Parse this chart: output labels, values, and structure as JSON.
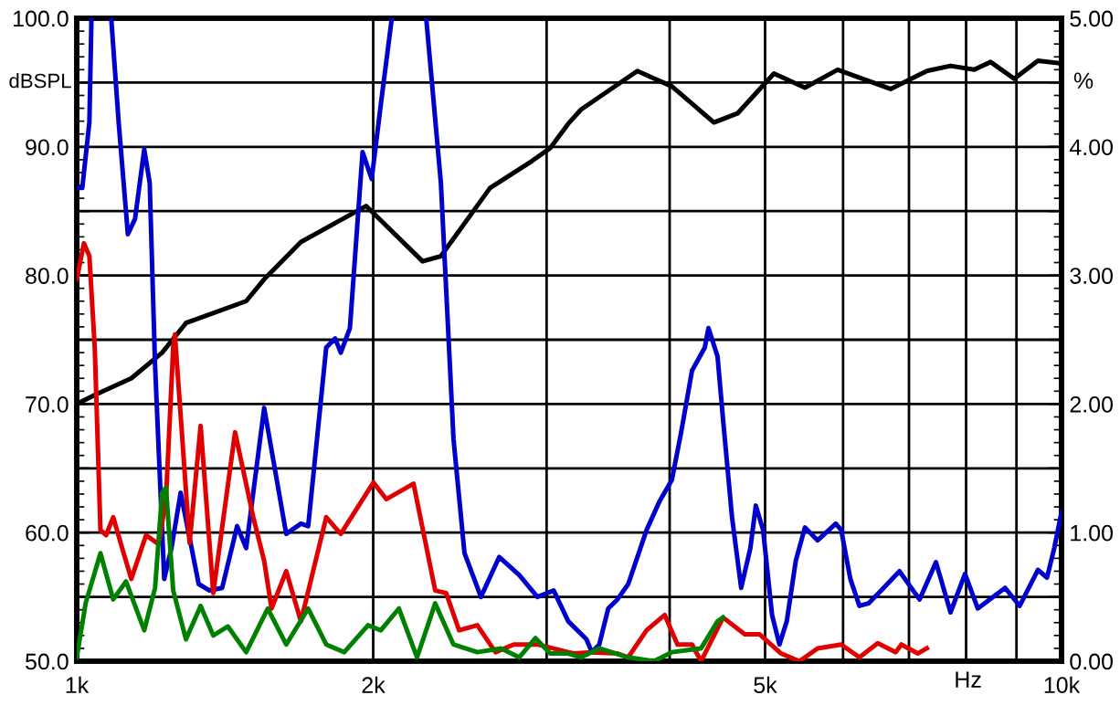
{
  "chart_data": {
    "type": "line",
    "xlabel": "Hz",
    "ylabel": "dBSPL",
    "y2label": "%",
    "log": "x",
    "grid": true,
    "legend": false,
    "marker": "none",
    "line_style": "solid",
    "xlim": [
      1000,
      10000
    ],
    "xticks": [
      {
        "value": 1000,
        "label": "1k"
      },
      {
        "value": 2000,
        "label": "2k"
      },
      {
        "value": 3000,
        "label": null
      },
      {
        "value": 4000,
        "label": null
      },
      {
        "value": 5000,
        "label": "5k"
      },
      {
        "value": 6000,
        "label": null
      },
      {
        "value": 7000,
        "label": null
      },
      {
        "value": 8000,
        "label": null
      },
      {
        "value": 9000,
        "label": null
      },
      {
        "value": 10000,
        "label": "10k"
      }
    ],
    "ylim": [
      50,
      100
    ],
    "yticks": [
      {
        "value": 50,
        "label": "50.0"
      },
      {
        "value": 55,
        "label": null
      },
      {
        "value": 60,
        "label": "60.0"
      },
      {
        "value": 65,
        "label": null
      },
      {
        "value": 70,
        "label": "70.0"
      },
      {
        "value": 75,
        "label": null
      },
      {
        "value": 80,
        "label": "80.0"
      },
      {
        "value": 85,
        "label": null
      },
      {
        "value": 90,
        "label": "90.0"
      },
      {
        "value": 95,
        "label": null
      },
      {
        "value": 100,
        "label": "100.0"
      }
    ],
    "y2lim": [
      0,
      5
    ],
    "y2ticks": [
      {
        "value": 0,
        "label": "0.00"
      },
      {
        "value": 0.5,
        "label": null
      },
      {
        "value": 1,
        "label": "1.00"
      },
      {
        "value": 1.5,
        "label": null
      },
      {
        "value": 2,
        "label": "2.00"
      },
      {
        "value": 2.5,
        "label": null
      },
      {
        "value": 3,
        "label": "3.00"
      },
      {
        "value": 3.5,
        "label": null
      },
      {
        "value": 4,
        "label": "4.00"
      },
      {
        "value": 4.5,
        "label": null
      },
      {
        "value": 5,
        "label": "5.00"
      }
    ],
    "series": [
      {
        "color": "#000000",
        "axis": "y",
        "x": [
          1000,
          1043,
          1136,
          1221,
          1291,
          1486,
          1550,
          1689,
          1967,
          2245,
          2343,
          2628,
          2899,
          3025,
          3156,
          3251,
          3709,
          4021,
          4436,
          4688,
          5105,
          5488,
          5924,
          6705,
          7297,
          7714,
          8153,
          8472,
          8953,
          9462,
          9958
        ],
        "values": [
          70.0,
          70.7,
          72.0,
          74.0,
          76.3,
          78.0,
          79.7,
          82.6,
          85.4,
          81.1,
          81.5,
          86.8,
          88.9,
          89.9,
          91.8,
          92.9,
          95.9,
          94.7,
          91.9,
          92.6,
          95.7,
          94.6,
          96.0,
          94.5,
          95.9,
          96.3,
          96.0,
          96.6,
          95.3,
          96.7,
          96.5
        ]
      },
      {
        "color": "#0000cc",
        "axis": "y2",
        "x": [
          1000,
          1013,
          1030,
          1035,
          1060,
          1084,
          1103,
          1127,
          1146,
          1171,
          1186,
          1201,
          1227,
          1248,
          1275,
          1330,
          1364,
          1405,
          1455,
          1486,
          1550,
          1632,
          1689,
          1718,
          1792,
          1830,
          1854,
          1894,
          1951,
          1993,
          2036,
          2089,
          2180,
          2264,
          2343,
          2393,
          2413,
          2476,
          2573,
          2685,
          2814,
          2936,
          3050,
          3156,
          3293,
          3335,
          3393,
          3465,
          3540,
          3631,
          3790,
          3904,
          4021,
          4109,
          4215,
          4343,
          4380,
          4474,
          4532,
          4628,
          4728,
          4831,
          4893,
          4977,
          5082,
          5171,
          5260,
          5372,
          5488,
          5654,
          5899,
          5974,
          6103,
          6234,
          6368,
          6561,
          6846,
          7175,
          7456,
          7714,
          7980,
          8222,
          8764,
          9068,
          9462,
          9666,
          9832,
          10000
        ],
        "values": [
          3.68,
          3.68,
          4.19,
          5.0,
          null,
          5.0,
          4.19,
          3.32,
          3.44,
          3.98,
          3.72,
          2.3,
          0.64,
          0.88,
          1.31,
          0.6,
          0.55,
          0.57,
          1.05,
          0.88,
          1.97,
          0.99,
          1.07,
          1.05,
          2.44,
          2.51,
          2.4,
          2.59,
          3.96,
          3.75,
          4.33,
          5.0,
          null,
          5.0,
          3.72,
          2.3,
          1.73,
          0.84,
          0.5,
          0.81,
          0.67,
          0.5,
          0.55,
          0.31,
          0.17,
          0.07,
          0.13,
          0.41,
          0.48,
          0.6,
          1.02,
          1.24,
          1.41,
          1.78,
          2.26,
          2.44,
          2.59,
          2.37,
          1.88,
          1.12,
          0.57,
          0.88,
          1.21,
          1.02,
          0.36,
          0.13,
          0.31,
          0.78,
          1.04,
          0.94,
          1.07,
          1.02,
          0.64,
          0.43,
          0.45,
          0.55,
          0.7,
          0.48,
          0.77,
          0.38,
          0.68,
          0.41,
          0.57,
          0.43,
          0.71,
          0.65,
          0.88,
          1.16
        ]
      },
      {
        "color": "#e00000",
        "axis": "y2",
        "x": [
          1000,
          1017,
          1030,
          1043,
          1057,
          1071,
          1089,
          1112,
          1136,
          1176,
          1211,
          1232,
          1253,
          1258,
          1280,
          1302,
          1336,
          1376,
          1448,
          1511,
          1550,
          1577,
          1632,
          1689,
          1792,
          1854,
          2001,
          2062,
          2198,
          2312,
          2372,
          2445,
          2551,
          2662,
          2778,
          2936,
          3156,
          3197,
          3335,
          3540,
          3631,
          3790,
          3954,
          4074,
          4215,
          4305,
          4532,
          4768,
          4934,
          5191,
          5418,
          5654,
          5974,
          6234,
          6507,
          6787,
          6876,
          7145,
          7297
        ],
        "values": [
          2.97,
          3.25,
          3.15,
          2.44,
          1.02,
          0.98,
          1.12,
          0.88,
          0.64,
          0.98,
          0.91,
          1.26,
          2.44,
          2.54,
          1.73,
          0.92,
          1.83,
          0.53,
          1.78,
          1.12,
          0.78,
          0.41,
          0.7,
          0.31,
          1.12,
          0.99,
          1.39,
          1.26,
          1.38,
          0.55,
          0.53,
          0.24,
          0.28,
          0.07,
          0.13,
          0.13,
          0.07,
          0.06,
          0.07,
          0.06,
          0.03,
          0.24,
          0.36,
          0.13,
          0.13,
          0.0,
          0.34,
          0.21,
          0.21,
          0.06,
          0.0,
          0.1,
          0.13,
          0.03,
          0.14,
          0.07,
          0.13,
          0.06,
          0.1
        ]
      },
      {
        "color": "#008000",
        "axis": "y2",
        "x": [
          1000,
          1021,
          1057,
          1089,
          1122,
          1171,
          1201,
          1221,
          1232,
          1253,
          1291,
          1336,
          1376,
          1424,
          1486,
          1563,
          1632,
          1718,
          1792,
          1869,
          1976,
          2036,
          2124,
          2216,
          2312,
          2413,
          2551,
          2696,
          2814,
          2923,
          3025,
          3156,
          3251,
          3393,
          3631,
          3855,
          4021,
          4305,
          4474,
          4532
        ],
        "values": [
          0.03,
          0.45,
          0.84,
          0.48,
          0.62,
          0.24,
          0.57,
          1.31,
          1.35,
          0.55,
          0.17,
          0.43,
          0.2,
          0.27,
          0.07,
          0.41,
          0.13,
          0.41,
          0.13,
          0.07,
          0.28,
          0.24,
          0.41,
          0.03,
          0.45,
          0.13,
          0.07,
          0.1,
          0.03,
          0.18,
          0.06,
          0.06,
          0.03,
          0.1,
          0.03,
          0.0,
          0.07,
          0.1,
          0.31,
          0.34
        ]
      }
    ]
  }
}
